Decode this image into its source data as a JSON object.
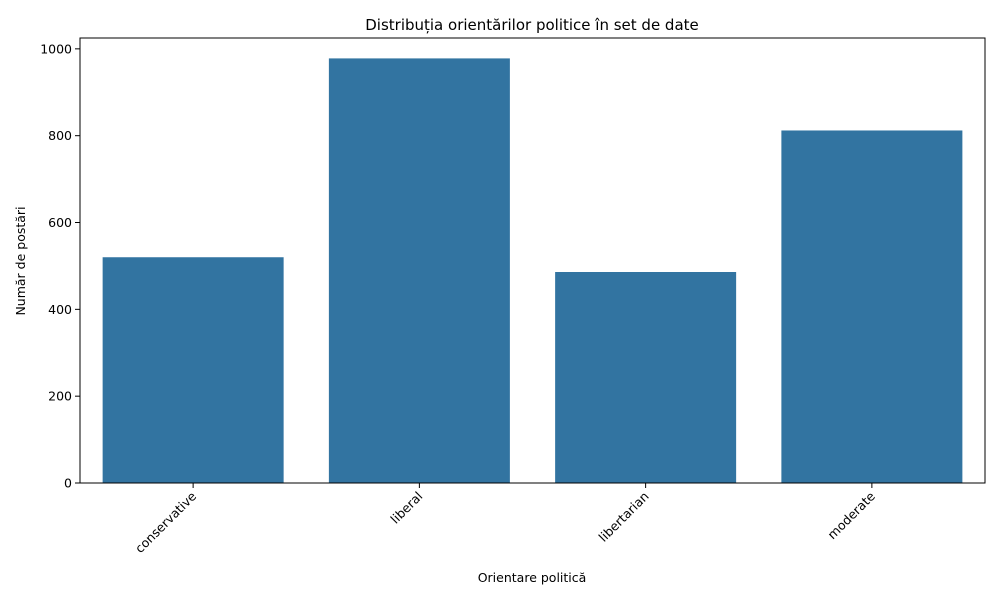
{
  "chart_data": {
    "type": "bar",
    "title": "Distribuția orientărilor politice în set de date",
    "xlabel": "Orientare politică",
    "ylabel": "Număr de postări",
    "categories": [
      "conservative",
      "liberal",
      "libertarian",
      "moderate"
    ],
    "values": [
      520,
      978,
      486,
      812
    ],
    "ylim": [
      0,
      1025
    ],
    "yticks": [
      0,
      200,
      400,
      600,
      800,
      1000
    ],
    "bar_color": "#3274a1",
    "grid": false,
    "x_tick_rotation_deg": 45
  }
}
